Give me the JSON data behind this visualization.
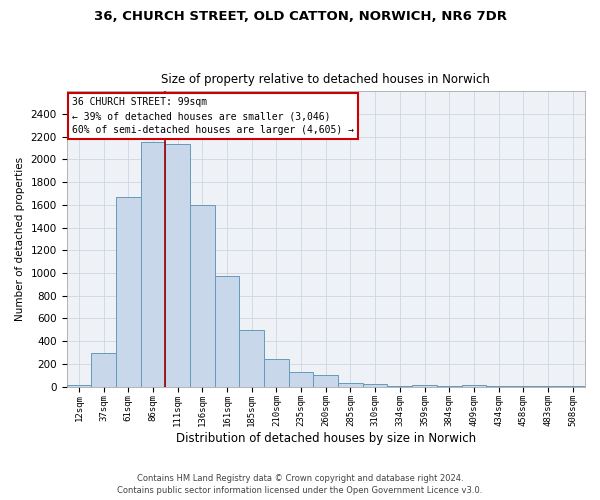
{
  "title_line1": "36, CHURCH STREET, OLD CATTON, NORWICH, NR6 7DR",
  "title_line2": "Size of property relative to detached houses in Norwich",
  "xlabel": "Distribution of detached houses by size in Norwich",
  "ylabel": "Number of detached properties",
  "bar_color": "#c8d8ea",
  "bar_edge_color": "#6699bb",
  "vline_color": "#990000",
  "annotation_title": "36 CHURCH STREET: 99sqm",
  "annotation_line1": "← 39% of detached houses are smaller (3,046)",
  "annotation_line2": "60% of semi-detached houses are larger (4,605) →",
  "annotation_box_color": "#ffffff",
  "annotation_box_edge": "#cc0000",
  "categories": [
    "12sqm",
    "37sqm",
    "61sqm",
    "86sqm",
    "111sqm",
    "136sqm",
    "161sqm",
    "185sqm",
    "210sqm",
    "235sqm",
    "260sqm",
    "285sqm",
    "310sqm",
    "334sqm",
    "359sqm",
    "384sqm",
    "409sqm",
    "434sqm",
    "458sqm",
    "483sqm",
    "508sqm"
  ],
  "values": [
    18,
    295,
    1670,
    2150,
    2140,
    1600,
    970,
    500,
    245,
    125,
    100,
    35,
    25,
    8,
    18,
    5,
    10,
    3,
    5,
    2,
    5
  ],
  "ylim": [
    0,
    2600
  ],
  "yticks": [
    0,
    200,
    400,
    600,
    800,
    1000,
    1200,
    1400,
    1600,
    1800,
    2000,
    2200,
    2400
  ],
  "footer_line1": "Contains HM Land Registry data © Crown copyright and database right 2024.",
  "footer_line2": "Contains public sector information licensed under the Open Government Licence v3.0.",
  "background_color": "#eef2f7",
  "grid_color": "#c8d0da"
}
